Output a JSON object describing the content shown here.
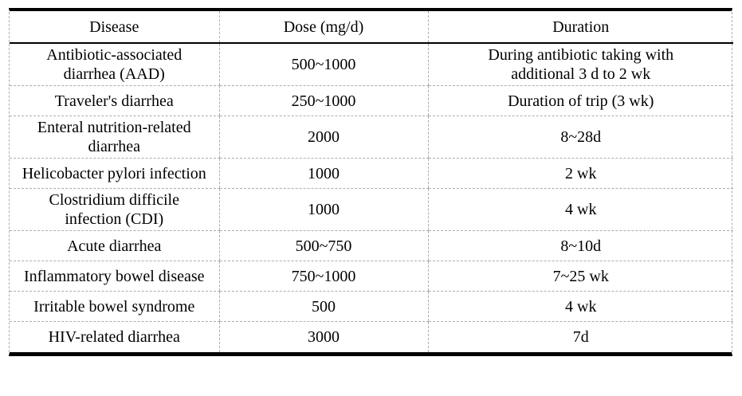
{
  "table": {
    "columns": [
      {
        "key": "disease",
        "label": "Disease"
      },
      {
        "key": "dose",
        "label": "Dose (mg/d)"
      },
      {
        "key": "duration",
        "label": "Duration"
      }
    ],
    "rows": [
      {
        "disease": "Antibiotic-associated diarrhea (AAD)",
        "dose": "500~1000",
        "duration": "During antibiotic taking with additional 3 d to 2 wk"
      },
      {
        "disease": "Traveler's diarrhea",
        "dose": "250~1000",
        "duration": "Duration of trip (3 wk)"
      },
      {
        "disease": "Enteral nutrition-related diarrhea",
        "dose": "2000",
        "duration": "8~28d"
      },
      {
        "disease": "Helicobacter pylori infection",
        "dose": "1000",
        "duration": "2 wk"
      },
      {
        "disease": "Clostridium difficile infection (CDI)",
        "dose": "1000",
        "duration": "4 wk"
      },
      {
        "disease": "Acute diarrhea",
        "dose": "500~750",
        "duration": "8~10d"
      },
      {
        "disease": "Inflammatory bowel disease",
        "dose": "750~1000",
        "duration": "7~25 wk"
      },
      {
        "disease": "Irritable bowel syndrome",
        "dose": "500",
        "duration": "4 wk"
      },
      {
        "disease": "HIV-related diarrhea",
        "dose": "3000",
        "duration": "7d"
      }
    ]
  },
  "colors": {
    "rule_heavy": "#000000",
    "grid_dashed": "#adadad",
    "text": "#000000",
    "background": "#ffffff"
  }
}
